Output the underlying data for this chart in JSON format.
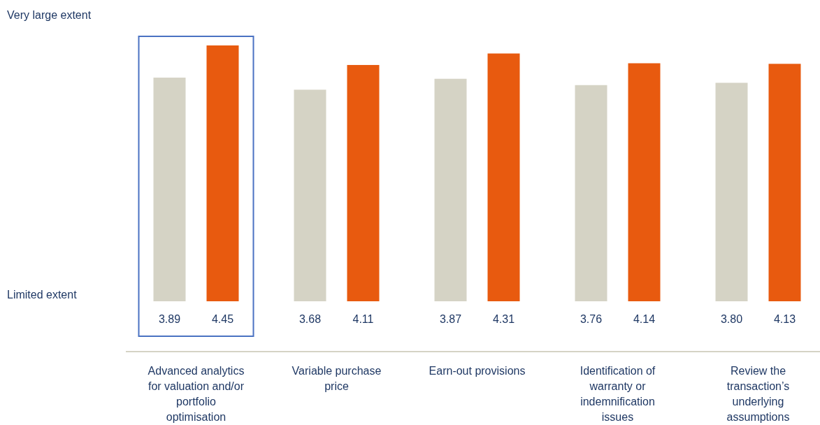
{
  "chart_data": {
    "type": "bar",
    "categories": [
      "Advanced analytics for valuation and/or portfolio optimisation",
      "Variable purchase price",
      "Earn-out provisions",
      "Identification of warranty or indemnification issues",
      "Review the transaction’s underlying assumptions"
    ],
    "series": [
      {
        "color": "#d5d3c5",
        "values": [
          3.89,
          3.68,
          3.87,
          3.76,
          3.8
        ],
        "value_labels": [
          "3.89",
          "3.68",
          "3.87",
          "3.76",
          "3.80"
        ]
      },
      {
        "color": "#e85a0f",
        "values": [
          4.45,
          4.11,
          4.31,
          4.14,
          4.13
        ],
        "value_labels": [
          "4.45",
          "4.11",
          "4.31",
          "4.14",
          "4.13"
        ]
      }
    ],
    "annotations": [
      "Very large extent",
      "Limited extent"
    ]
  }
}
